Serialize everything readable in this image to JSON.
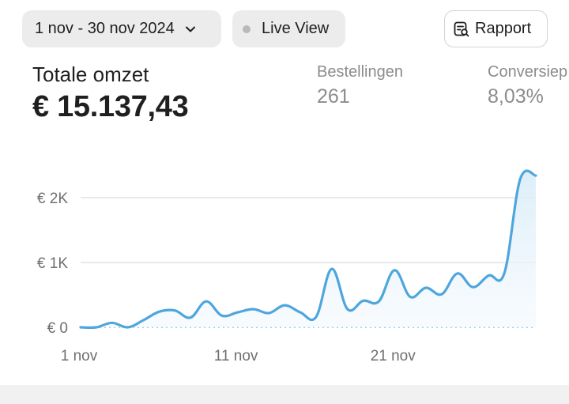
{
  "toolbar": {
    "date_range": "1 nov - 30 nov 2024",
    "live_view": "Live View",
    "report": "Rapport"
  },
  "metrics": {
    "total_sales_label": "Totale omzet",
    "total_sales_value": "€ 15.137,43",
    "orders_label": "Bestellingen",
    "orders_value": "261",
    "conversion_label": "Conversiep",
    "conversion_value": "8,03%"
  },
  "colors": {
    "line": "#4ea6dd",
    "area": "#eaf4fb",
    "grid": "#dcdcdc",
    "baseline": "#9fd0ec"
  },
  "icons": {
    "date": "chevron-down-icon",
    "live": "status-dot-icon",
    "report": "report-icon"
  },
  "chart_data": {
    "type": "area",
    "title": "",
    "xlabel": "",
    "ylabel": "",
    "x": [
      1,
      2,
      3,
      4,
      5,
      6,
      7,
      8,
      9,
      10,
      11,
      12,
      13,
      14,
      15,
      16,
      17,
      18,
      19,
      20,
      21,
      22,
      23,
      24,
      25,
      26,
      27,
      28,
      29,
      30
    ],
    "x_tick_labels": [
      {
        "x": 1,
        "label": "1 nov"
      },
      {
        "x": 11,
        "label": "11 nov"
      },
      {
        "x": 21,
        "label": "21 nov"
      }
    ],
    "y_tick_labels": [
      {
        "y": 0,
        "label": "€ 0"
      },
      {
        "y": 1000,
        "label": "€ 1K"
      },
      {
        "y": 2000,
        "label": "€ 2K"
      }
    ],
    "ylim": [
      0,
      2400
    ],
    "grid": true,
    "series": [
      {
        "values": [
          0,
          0,
          70,
          0,
          110,
          240,
          260,
          150,
          400,
          180,
          230,
          280,
          220,
          340,
          230,
          160,
          900,
          280,
          410,
          400,
          880,
          470,
          610,
          510,
          830,
          620,
          800,
          840,
          2280,
          2340
        ]
      }
    ]
  }
}
